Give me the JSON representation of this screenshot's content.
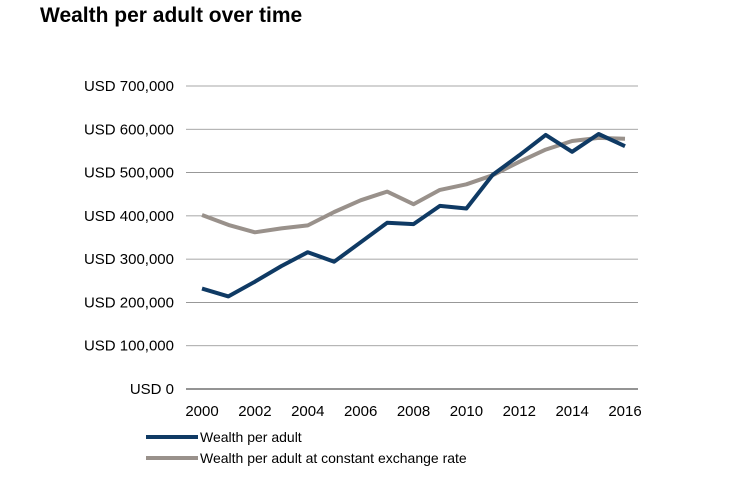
{
  "chart_data": {
    "type": "line",
    "title": "Wealth per adult over time",
    "xlabel": "",
    "ylabel": "",
    "x": [
      2000,
      2001,
      2002,
      2003,
      2004,
      2005,
      2006,
      2007,
      2008,
      2009,
      2010,
      2011,
      2012,
      2013,
      2014,
      2015,
      2016
    ],
    "xticks": [
      2000,
      2002,
      2004,
      2006,
      2008,
      2010,
      2012,
      2014,
      2016
    ],
    "xtick_labels": [
      "2000",
      "2002",
      "2004",
      "2006",
      "2008",
      "2010",
      "2012",
      "2014",
      "2016"
    ],
    "yticks": [
      0,
      100000,
      200000,
      300000,
      400000,
      500000,
      600000,
      700000
    ],
    "ytick_labels": [
      "USD 0",
      "USD 100,000",
      "USD 200,000",
      "USD 300,000",
      "USD 400,000",
      "USD 500,000",
      "USD 600,000",
      "USD 700,000"
    ],
    "ylim": [
      0,
      700000
    ],
    "xlim": [
      2000,
      2016
    ],
    "grid": true,
    "legend_position": "bottom-left",
    "series": [
      {
        "name": "Wealth per adult",
        "color": "#0f3a64",
        "values": [
          232000,
          214000,
          248000,
          284000,
          316000,
          294000,
          339000,
          384000,
          381000,
          423000,
          417000,
          495000,
          540000,
          587000,
          548000,
          589000,
          561000
        ]
      },
      {
        "name": "Wealth per adult at constant exchange rate",
        "color": "#99918b",
        "values": [
          402000,
          379000,
          362000,
          371000,
          378000,
          409000,
          436000,
          456000,
          427000,
          460000,
          473000,
          494000,
          525000,
          553000,
          573000,
          580000,
          578000
        ]
      }
    ]
  }
}
